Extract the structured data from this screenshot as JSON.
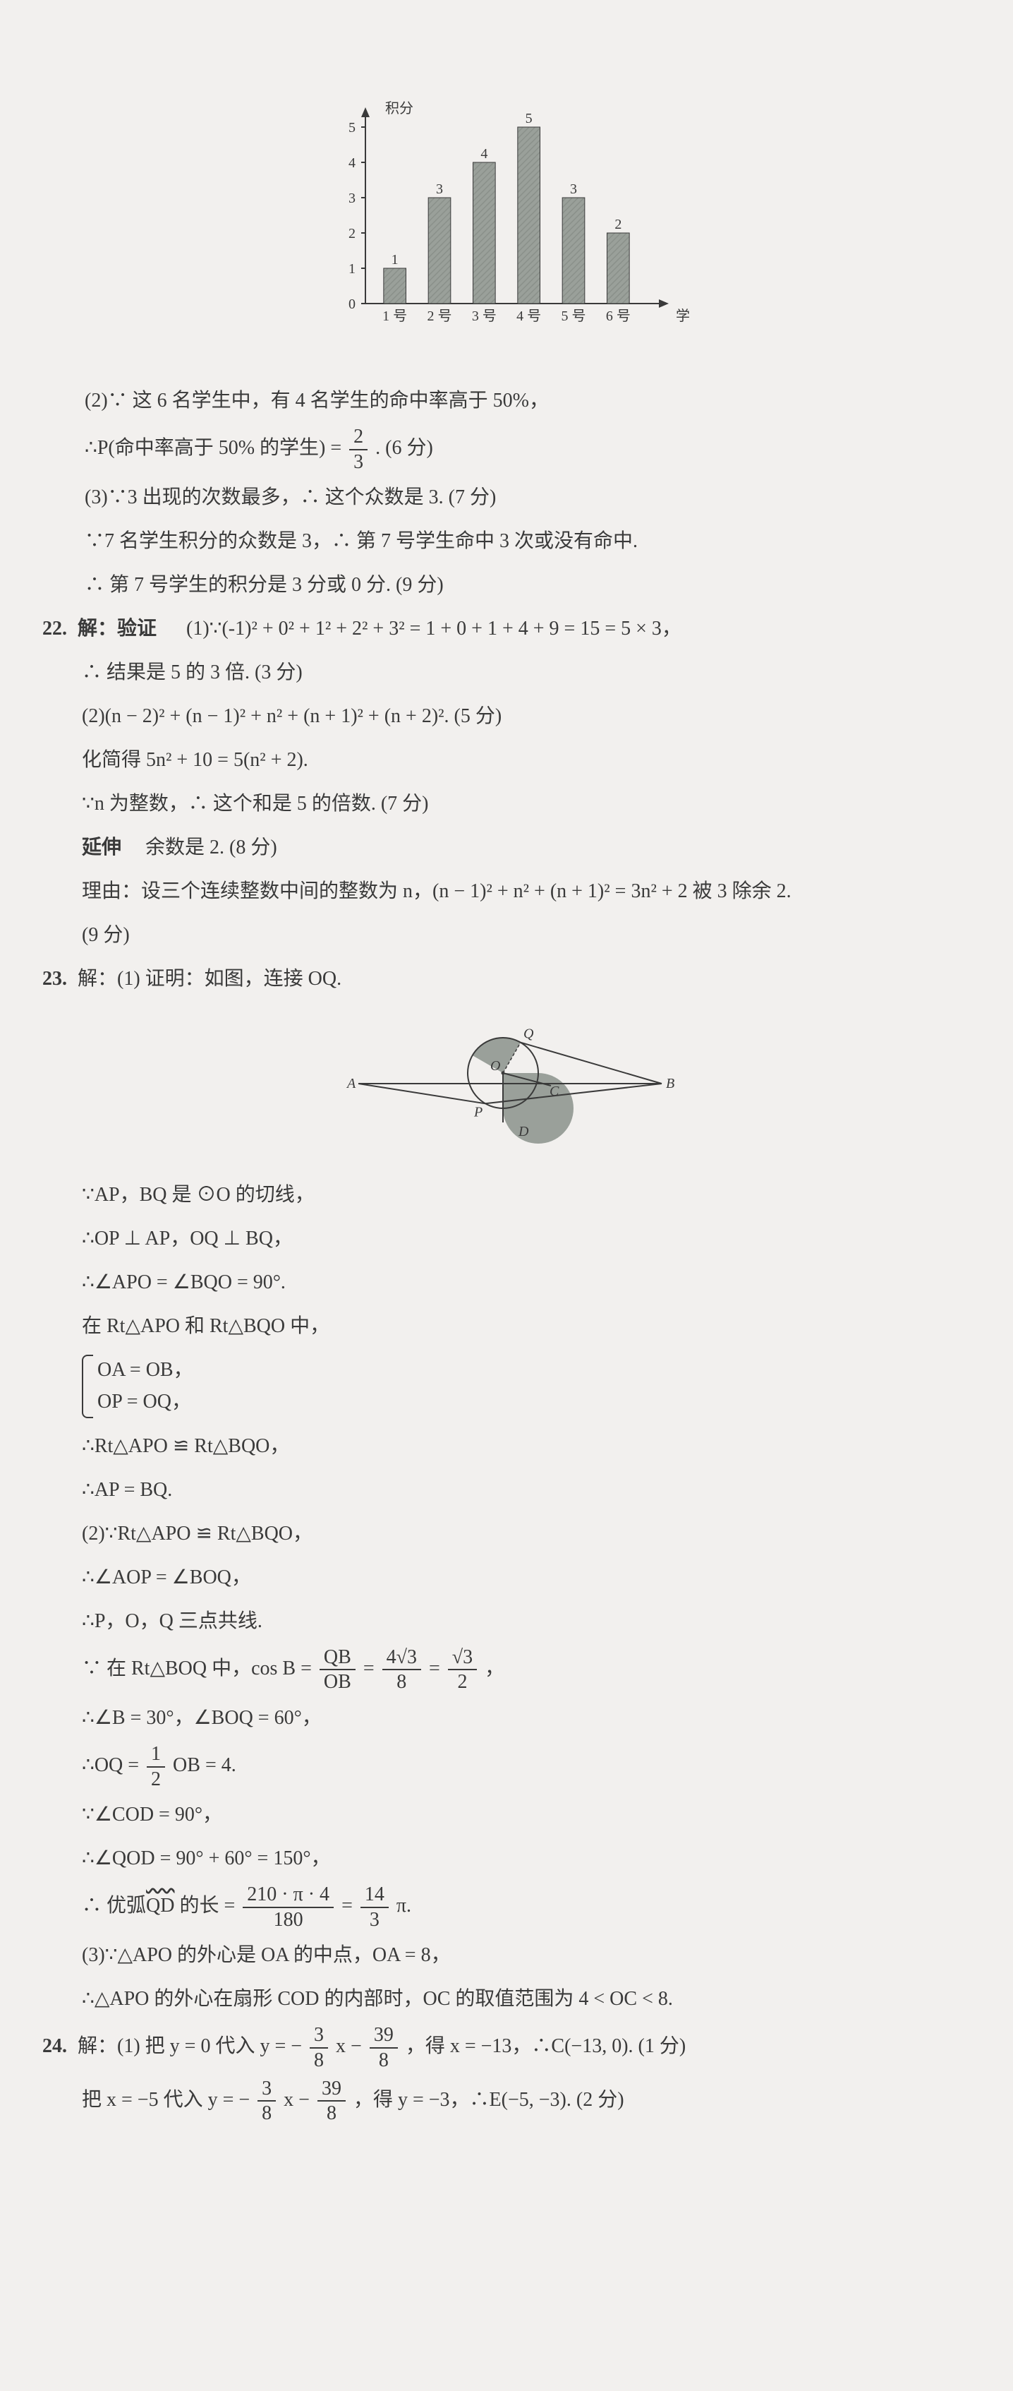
{
  "chart": {
    "type": "bar",
    "y_label": "积分",
    "x_label": "学生编号",
    "categories": [
      "1 号",
      "2 号",
      "3 号",
      "4 号",
      "5 号",
      "6 号"
    ],
    "values": [
      1,
      3,
      4,
      5,
      3,
      2
    ],
    "bar_labels": [
      "1",
      "3",
      "4",
      "5",
      "3",
      "2"
    ],
    "ylim": [
      0,
      5
    ],
    "ytick_step": 1,
    "bar_color": "#9aa09a",
    "bar_hatch": "#8a908a",
    "axis_color": "#3a3a3a",
    "label_color": "#3a3a3a",
    "label_fontsize": 20,
    "bar_width": 0.5,
    "background": "#f2f0ee"
  },
  "q21": {
    "part2_l1": "(2)∵ 这 6 名学生中，有 4 名学生的命中率高于 50%，",
    "part2_l2_pre": "∴P(命中率高于 50% 的学生) = ",
    "part2_frac_num": "2",
    "part2_frac_den": "3",
    "part2_l2_post": ". (6 分)",
    "part3_l1": "(3)∵3 出现的次数最多，∴ 这个众数是 3. (7 分)",
    "part3_l2": "∵7 名学生积分的众数是 3，∴ 第 7 号学生命中 3 次或没有命中.",
    "part3_l3": "∴ 第 7 号学生的积分是 3 分或 0 分. (9 分)"
  },
  "q22": {
    "num": "22.",
    "prefix": "解：验证",
    "l1": "(1)∵(-1)² + 0² + 1² + 2² + 3² = 1 + 0 + 1 + 4 + 9 = 15 = 5 × 3，",
    "l2": "∴ 结果是 5 的 3 倍. (3 分)",
    "l3": "(2)(n − 2)² + (n − 1)² + n² + (n + 1)² + (n + 2)². (5 分)",
    "l4": "化简得 5n² + 10 = 5(n² + 2).",
    "l5": "∵n 为整数，∴ 这个和是 5 的倍数. (7 分)",
    "l6_pre": "延伸",
    "l6": "余数是 2. (8 分)",
    "l7": "理由：设三个连续整数中间的整数为 n，(n − 1)² + n² + (n + 1)² = 3n² + 2 被 3 除余 2.",
    "l8": "(9 分)"
  },
  "q23": {
    "num": "23.",
    "head": "解：(1) 证明：如图，连接 OQ.",
    "diagram": {
      "type": "geometry",
      "circle_fill": "#9aa09a",
      "sector_fill": "#8a908a",
      "stroke": "#3a3a3a",
      "labels": {
        "A": "A",
        "B": "B",
        "O": "O",
        "Q": "Q",
        "P": "P",
        "D": "D",
        "C": "C"
      }
    },
    "l1": "∵AP，BQ 是 ⊙O 的切线，",
    "l2": "∴OP ⊥ AP，OQ ⊥ BQ，",
    "l3": "∴∠APO = ∠BQO = 90°.",
    "l4": "在 Rt△APO 和 Rt△BQO 中，",
    "brace_a": "OA = OB，",
    "brace_b": "OP = OQ，",
    "l5": "∴Rt△APO ≌ Rt△BQO，",
    "l6": "∴AP = BQ.",
    "l7": "(2)∵Rt△APO ≌ Rt△BQO，",
    "l8": "∴∠AOP = ∠BOQ，",
    "l9": "∴P，O，Q 三点共线.",
    "l10_pre": "∵ 在 Rt△BOQ 中，cos B = ",
    "l10_f1_num": "QB",
    "l10_f1_den": "OB",
    "l10_mid1": " = ",
    "l10_f2_num": "4√3",
    "l10_f2_den": "8",
    "l10_mid2": " = ",
    "l10_f3_num": "√3",
    "l10_f3_den": "2",
    "l10_post": "，",
    "l11": "∴∠B = 30°，∠BOQ = 60°，",
    "l12_pre": "∴OQ = ",
    "l12_f_num": "1",
    "l12_f_den": "2",
    "l12_post": "OB = 4.",
    "l13": "∵∠COD = 90°，",
    "l14": "∴∠QOD = 90° + 60° = 150°，",
    "l15_pre": "∴ 优弧",
    "l15_arc": "QD",
    "l15_mid": " 的长 = ",
    "l15_f1_num": "210 · π · 4",
    "l15_f1_den": "180",
    "l15_eq": " = ",
    "l15_f2_num": "14",
    "l15_f2_den": "3",
    "l15_post": "π.",
    "l16": "(3)∵△APO 的外心是 OA 的中点，OA = 8，",
    "l17": "∴△APO 的外心在扇形 COD 的内部时，OC 的取值范围为 4 < OC < 8."
  },
  "q24": {
    "num": "24.",
    "l1_pre": "解：(1) 把 y = 0 代入 y = −",
    "l1_f1_num": "3",
    "l1_f1_den": "8",
    "l1_mid1": "x − ",
    "l1_f2_num": "39",
    "l1_f2_den": "8",
    "l1_post": "，得 x = −13，∴C(−13, 0). (1 分)",
    "l2_pre": "把 x = −5 代入 y = −",
    "l2_f1_num": "3",
    "l2_f1_den": "8",
    "l2_mid1": "x − ",
    "l2_f2_num": "39",
    "l2_f2_den": "8",
    "l2_post": "，得 y = −3，∴E(−5, −3). (2 分)"
  }
}
